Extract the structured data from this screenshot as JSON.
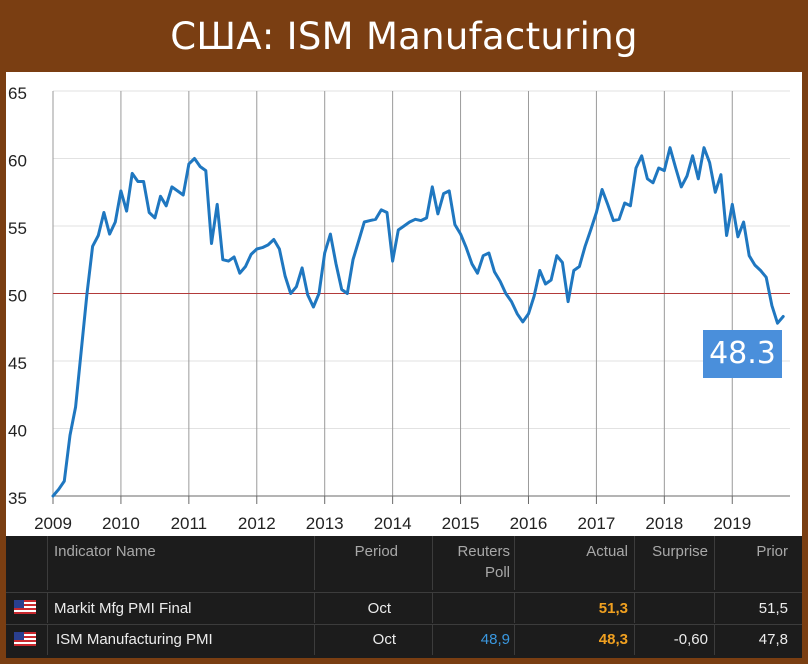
{
  "title": "США: ISM Manufacturing",
  "chart_data": {
    "type": "line",
    "x_start": 2009.0,
    "x_step_months": 1,
    "xlim": [
      2009,
      2019.85
    ],
    "ylim": [
      35,
      65
    ],
    "x_ticks": [
      "2009",
      "2010",
      "2011",
      "2012",
      "2013",
      "2014",
      "2015",
      "2016",
      "2017",
      "2018",
      "2019"
    ],
    "y_ticks": [
      "35",
      "40",
      "45",
      "50",
      "55",
      "60",
      "65"
    ],
    "reference_line": 50,
    "grid": true,
    "series": [
      {
        "color": "#1f77c0",
        "values": [
          35.0,
          35.5,
          36.1,
          39.5,
          41.6,
          45.8,
          50.0,
          53.5,
          54.3,
          56.0,
          54.4,
          55.3,
          57.6,
          56.1,
          58.9,
          58.3,
          58.3,
          56.0,
          55.6,
          57.2,
          56.5,
          57.9,
          57.6,
          57.3,
          59.6,
          60.0,
          59.4,
          59.1,
          53.7,
          56.6,
          52.5,
          52.4,
          52.7,
          51.5,
          52.0,
          52.9,
          53.3,
          53.4,
          53.6,
          54.0,
          53.3,
          51.3,
          50.0,
          50.5,
          51.9,
          49.9,
          49.0,
          50.0,
          53.0,
          54.4,
          52.2,
          50.3,
          50.0,
          52.5,
          53.9,
          55.3,
          55.4,
          55.5,
          56.2,
          56.0,
          52.4,
          54.7,
          55.0,
          55.3,
          55.5,
          55.4,
          55.6,
          57.9,
          55.9,
          57.4,
          57.6,
          55.1,
          54.4,
          53.4,
          52.2,
          51.5,
          52.8,
          53.0,
          51.6,
          50.9,
          50.0,
          49.4,
          48.5,
          47.9,
          48.5,
          49.8,
          51.7,
          50.7,
          51.0,
          52.8,
          52.3,
          49.4,
          51.7,
          52.0,
          53.5,
          54.7,
          56.0,
          57.7,
          56.6,
          55.4,
          55.5,
          56.7,
          56.5,
          59.3,
          60.2,
          58.5,
          58.2,
          59.3,
          59.1,
          60.8,
          59.3,
          57.9,
          58.7,
          60.2,
          58.5,
          60.8,
          59.7,
          57.5,
          58.8,
          54.3,
          56.6,
          54.2,
          55.3,
          52.8,
          52.1,
          51.7,
          51.2,
          49.1,
          47.8,
          48.3
        ]
      }
    ],
    "callout": "48.3"
  },
  "table": {
    "headers": {
      "name": "Indicator Name",
      "period": "Period",
      "poll_line1": "Reuters",
      "poll_line2": "Poll",
      "actual": "Actual",
      "surprise": "Surprise",
      "prior": "Prior"
    },
    "rows": [
      {
        "flag": "us-flag-icon",
        "name": "Markit Mfg PMI Final",
        "period": "Oct",
        "poll": "",
        "actual": "51,3",
        "surprise": "",
        "prior": "51,5"
      },
      {
        "flag": "us-flag-icon",
        "name": "ISM Manufacturing PMI",
        "period": "Oct",
        "poll": "48,9",
        "actual": "48,3",
        "surprise": "-0,60",
        "prior": "47,8"
      }
    ],
    "colors": {
      "actual": "#f0a020",
      "poll": "#3a98e0"
    }
  }
}
